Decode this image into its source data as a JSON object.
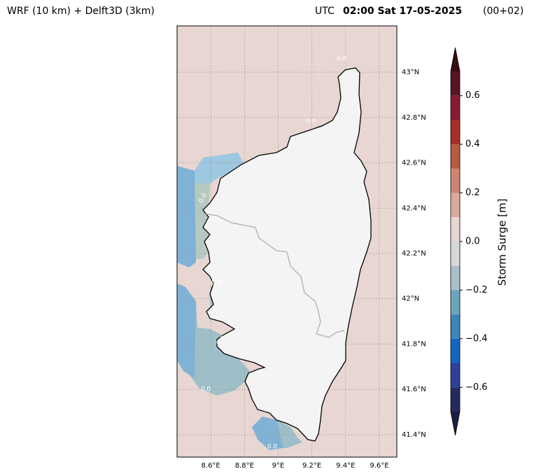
{
  "header": {
    "left_title": "WRF (10 km) + Delft3D (3km)",
    "utc": "UTC",
    "time": "02:00 Sat 17-05-2025",
    "time_color": "#cd5c5c",
    "lead": "(00+02)"
  },
  "map": {
    "xlim": [
      8.4,
      9.704
    ],
    "ylim": [
      41.301,
      43.204
    ],
    "grid": true,
    "xticks": [
      {
        "value": 8.6,
        "label": "8.6°E"
      },
      {
        "value": 8.8,
        "label": "8.8°E"
      },
      {
        "value": 9,
        "label": "9°E"
      },
      {
        "value": 9.2,
        "label": "9.2°E"
      },
      {
        "value": 9.4,
        "label": "9.4°E"
      },
      {
        "value": 9.6,
        "label": "9.6°E"
      }
    ],
    "yticks": [
      {
        "value": 41.4,
        "label": "41.4°N"
      },
      {
        "value": 41.6,
        "label": "41.6°N"
      },
      {
        "value": 41.8,
        "label": "41.8°N"
      },
      {
        "value": 42,
        "label": "42°N"
      },
      {
        "value": 42.2,
        "label": "42.2°N"
      },
      {
        "value": 42.4,
        "label": "42.4°N"
      },
      {
        "value": 42.6,
        "label": "42.6°N"
      },
      {
        "value": 42.8,
        "label": "42.8°N"
      },
      {
        "value": 43,
        "label": "43°N"
      }
    ],
    "contour_labels": [
      "0.0",
      "0.0",
      "0.0",
      "0.0",
      "0.0",
      "0.0",
      "0.0"
    ]
  },
  "colorbar": {
    "label": "Storm Surge [m]",
    "lim": [
      -0.7,
      0.7
    ],
    "levels": [
      -0.7,
      -0.6,
      -0.5,
      -0.4,
      -0.3,
      -0.2,
      -0.1,
      0,
      0.1,
      0.2,
      0.3,
      0.4,
      0.5,
      0.6,
      0.7
    ],
    "colors": [
      "#252a5e",
      "#2f3f9a",
      "#1565c0",
      "#3a86b8",
      "#6aa5bd",
      "#a9bfcb",
      "#d8d8d8",
      "#e8d6d2",
      "#dcaa9c",
      "#cd8470",
      "#b85a3e",
      "#a82e2a",
      "#8b1a2e",
      "#5a1420"
    ],
    "under_color": "#1b1f45",
    "over_color": "#3a0d12",
    "ticks": [
      {
        "value": -0.6,
        "label": "−0.6"
      },
      {
        "value": -0.4,
        "label": "−0.4"
      },
      {
        "value": -0.2,
        "label": "−0.2"
      },
      {
        "value": 0,
        "label": "0.0"
      },
      {
        "value": 0.2,
        "label": "0.2"
      },
      {
        "value": 0.4,
        "label": "0.4"
      },
      {
        "value": 0.6,
        "label": "0.6"
      }
    ]
  }
}
